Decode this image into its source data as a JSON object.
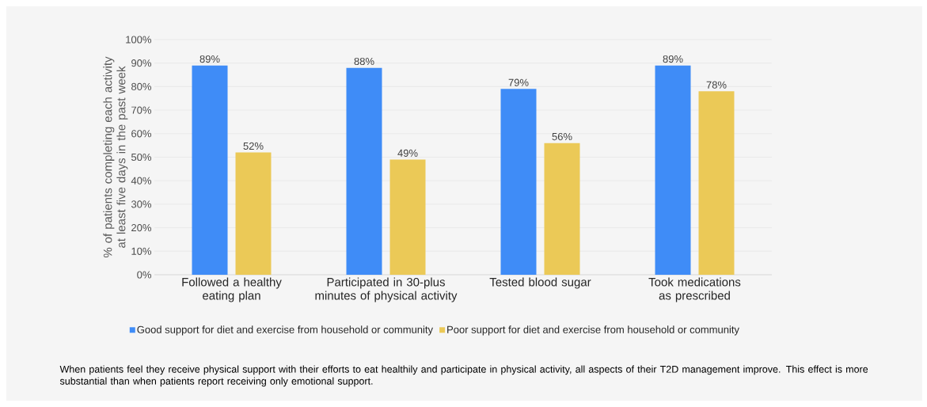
{
  "chart_data": {
    "type": "bar",
    "ylabel": "% of patients completing each activity at least five days in the past week",
    "categories": [
      "Followed a healthy eating plan",
      "Participated in 30-plus minutes of physical activity",
      "Tested blood sugar",
      "Took medications as prescribed"
    ],
    "series": [
      {
        "name": "Good support for diet and exercise from household or community",
        "color": "#3f8cf7",
        "values": [
          89,
          88,
          79,
          89
        ],
        "value_labels": [
          "89%",
          "88%",
          "79%",
          "89%"
        ]
      },
      {
        "name": "Poor support for diet and exercise from household or community",
        "color": "#ebc957",
        "values": [
          52,
          49,
          56,
          78
        ],
        "value_labels": [
          "52%",
          "49%",
          "56%",
          "78%"
        ]
      }
    ],
    "ylim": [
      0,
      100
    ],
    "yticks": [
      {
        "value": 0,
        "label": "0%"
      },
      {
        "value": 10,
        "label": "10%"
      },
      {
        "value": 20,
        "label": "20%"
      },
      {
        "value": 30,
        "label": "30%"
      },
      {
        "value": 40,
        "label": "40%"
      },
      {
        "value": 50,
        "label": "50%"
      },
      {
        "value": 60,
        "label": "60%"
      },
      {
        "value": 70,
        "label": "70%"
      },
      {
        "value": 80,
        "label": "80%"
      },
      {
        "value": 90,
        "label": "90%"
      },
      {
        "value": 100,
        "label": "100%"
      }
    ],
    "grid": "y",
    "legend": "bottom",
    "annotations": [
      "When patients feel they receive physical support with their efforts to eat healthily and participate in physical activity, all aspects of their T2D management improve. This effect is more substantial than when patients report receiving only emotional support."
    ]
  }
}
